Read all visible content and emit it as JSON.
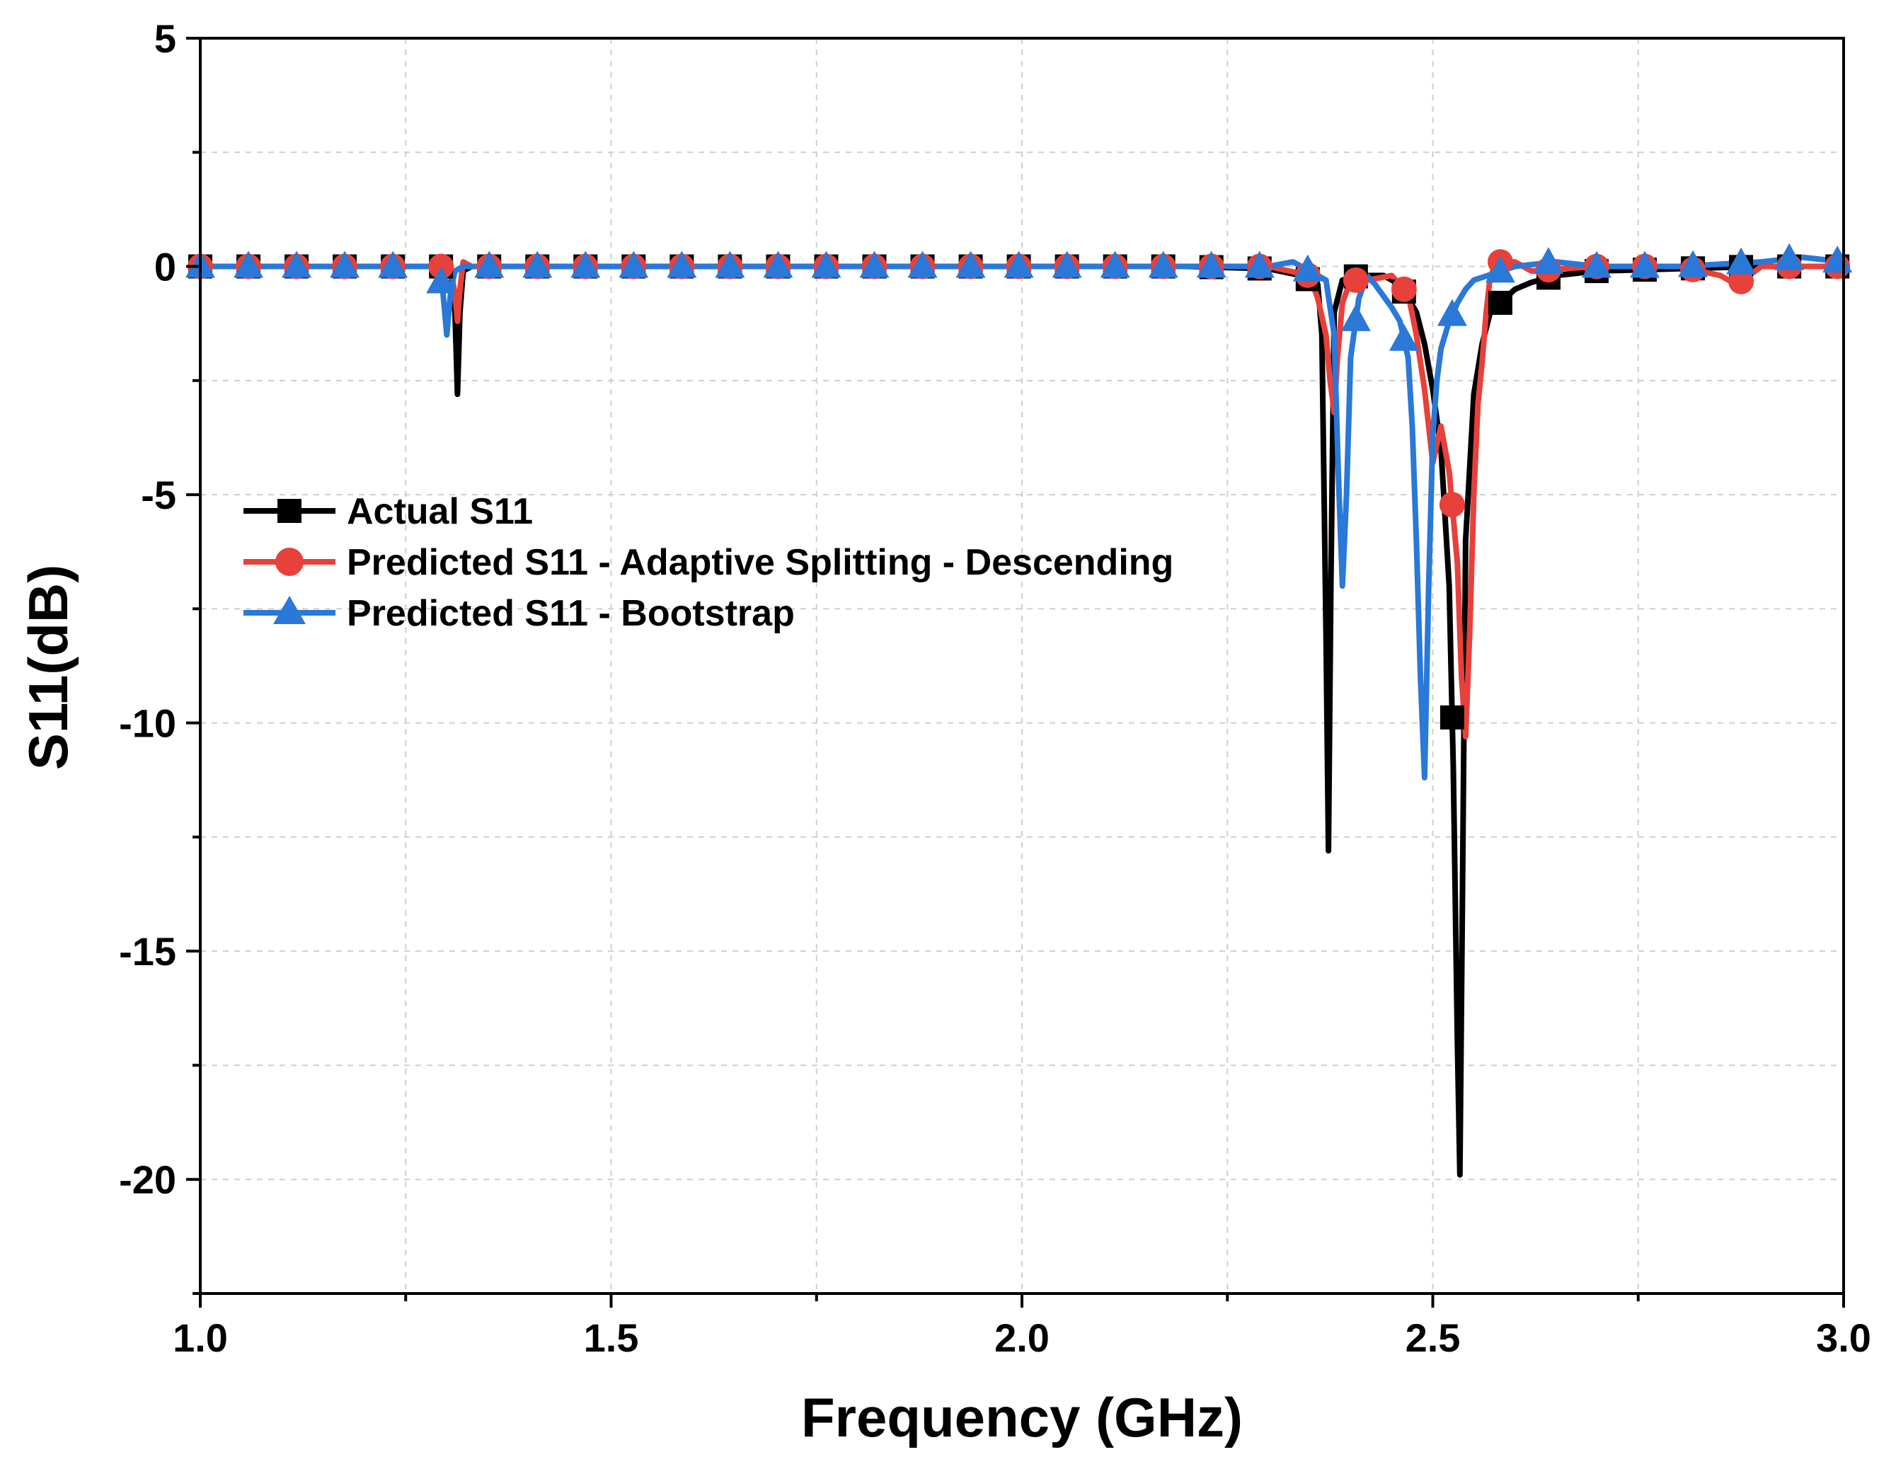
{
  "chart_data": {
    "type": "line",
    "title": "",
    "xlabel": "Frequency (GHz)",
    "ylabel": "S11(dB)",
    "xlim": [
      1.0,
      3.0
    ],
    "ylim": [
      -22.5,
      5
    ],
    "x_ticks": [
      1.0,
      1.5,
      2.0,
      2.5,
      3.0
    ],
    "x_tick_labels": [
      "1.0",
      "1.5",
      "2.0",
      "2.5",
      "3.0"
    ],
    "y_ticks": [
      5,
      0,
      -5,
      -10,
      -15,
      -20
    ],
    "y_tick_labels": [
      "5",
      "0",
      "-5",
      "-10",
      "-15",
      "-20"
    ],
    "grid": true,
    "legend_position": "middle-left",
    "series": [
      {
        "name": "Actual S11",
        "color": "#000000",
        "marker": "square",
        "x": [
          1.0,
          1.3,
          1.305,
          1.31,
          1.313,
          1.316,
          1.32,
          1.33,
          1.6,
          1.9,
          2.2,
          2.3,
          2.34,
          2.36,
          2.365,
          2.37,
          2.373,
          2.376,
          2.38,
          2.39,
          2.41,
          2.44,
          2.46,
          2.48,
          2.49,
          2.5,
          2.51,
          2.52,
          2.525,
          2.53,
          2.533,
          2.536,
          2.54,
          2.55,
          2.56,
          2.57,
          2.6,
          2.62,
          2.65,
          2.7,
          2.8,
          2.9,
          3.0
        ],
        "y": [
          0,
          0,
          -0.1,
          -1.0,
          -2.8,
          -1.0,
          -0.1,
          0,
          0,
          0,
          0,
          -0.05,
          -0.2,
          -0.4,
          -1.5,
          -8.0,
          -12.8,
          -7.0,
          -1.0,
          -0.3,
          -0.2,
          -0.2,
          -0.4,
          -1.0,
          -1.7,
          -2.7,
          -4.0,
          -7.0,
          -11.0,
          -17.0,
          -19.9,
          -14.0,
          -6.0,
          -2.8,
          -1.7,
          -1.0,
          -0.5,
          -0.35,
          -0.2,
          -0.1,
          -0.05,
          0,
          0
        ]
      },
      {
        "name": "Predicted S11 - Adaptive Splitting - Descending",
        "color": "#e8403a",
        "marker": "circle",
        "x": [
          1.0,
          1.3,
          1.305,
          1.31,
          1.313,
          1.316,
          1.32,
          1.33,
          1.6,
          1.9,
          2.2,
          2.3,
          2.35,
          2.36,
          2.37,
          2.375,
          2.38,
          2.384,
          2.39,
          2.4,
          2.42,
          2.45,
          2.47,
          2.48,
          2.49,
          2.5,
          2.51,
          2.52,
          2.53,
          2.535,
          2.54,
          2.545,
          2.55,
          2.555,
          2.56,
          2.565,
          2.57,
          2.58,
          2.6,
          2.62,
          2.7,
          2.8,
          2.85,
          2.87,
          2.9,
          3.0
        ],
        "y": [
          0,
          0,
          -0.1,
          -0.6,
          -1.2,
          -0.5,
          0.1,
          0,
          0,
          0,
          0,
          0,
          -0.2,
          -0.7,
          -1.5,
          -2.5,
          -3.2,
          -2.0,
          -0.8,
          -0.3,
          -0.3,
          -0.2,
          -0.6,
          -1.5,
          -2.7,
          -4.3,
          -3.5,
          -4.5,
          -6.5,
          -9.0,
          -10.3,
          -8.0,
          -5.0,
          -3.0,
          -2.1,
          -1.0,
          -0.2,
          0.1,
          0.1,
          -0.1,
          0,
          0,
          -0.2,
          -0.4,
          0,
          0
        ]
      },
      {
        "name": "Predicted S11 - Bootstrap",
        "color": "#2a78d8",
        "marker": "triangle",
        "x": [
          1.0,
          1.28,
          1.29,
          1.295,
          1.3,
          1.305,
          1.31,
          1.32,
          1.6,
          1.9,
          2.2,
          2.3,
          2.33,
          2.35,
          2.37,
          2.38,
          2.385,
          2.39,
          2.395,
          2.4,
          2.41,
          2.42,
          2.43,
          2.45,
          2.46,
          2.47,
          2.475,
          2.48,
          2.485,
          2.49,
          2.495,
          2.5,
          2.505,
          2.51,
          2.52,
          2.53,
          2.54,
          2.55,
          2.6,
          2.65,
          2.7,
          2.8,
          2.9,
          2.95,
          3.0
        ],
        "y": [
          0,
          0,
          -0.1,
          -0.5,
          -1.5,
          -0.5,
          -0.1,
          0,
          0,
          0,
          0,
          0,
          0.1,
          -0.1,
          -0.3,
          -1.5,
          -4.5,
          -7.0,
          -5.0,
          -2.0,
          -0.7,
          -0.2,
          -0.4,
          -0.9,
          -1.2,
          -2.0,
          -3.5,
          -6.0,
          -9.0,
          -11.2,
          -7.0,
          -3.7,
          -2.5,
          -1.8,
          -1.2,
          -0.8,
          -0.5,
          -0.3,
          0,
          0.1,
          0,
          0,
          0.1,
          0.2,
          0.1
        ]
      }
    ]
  }
}
